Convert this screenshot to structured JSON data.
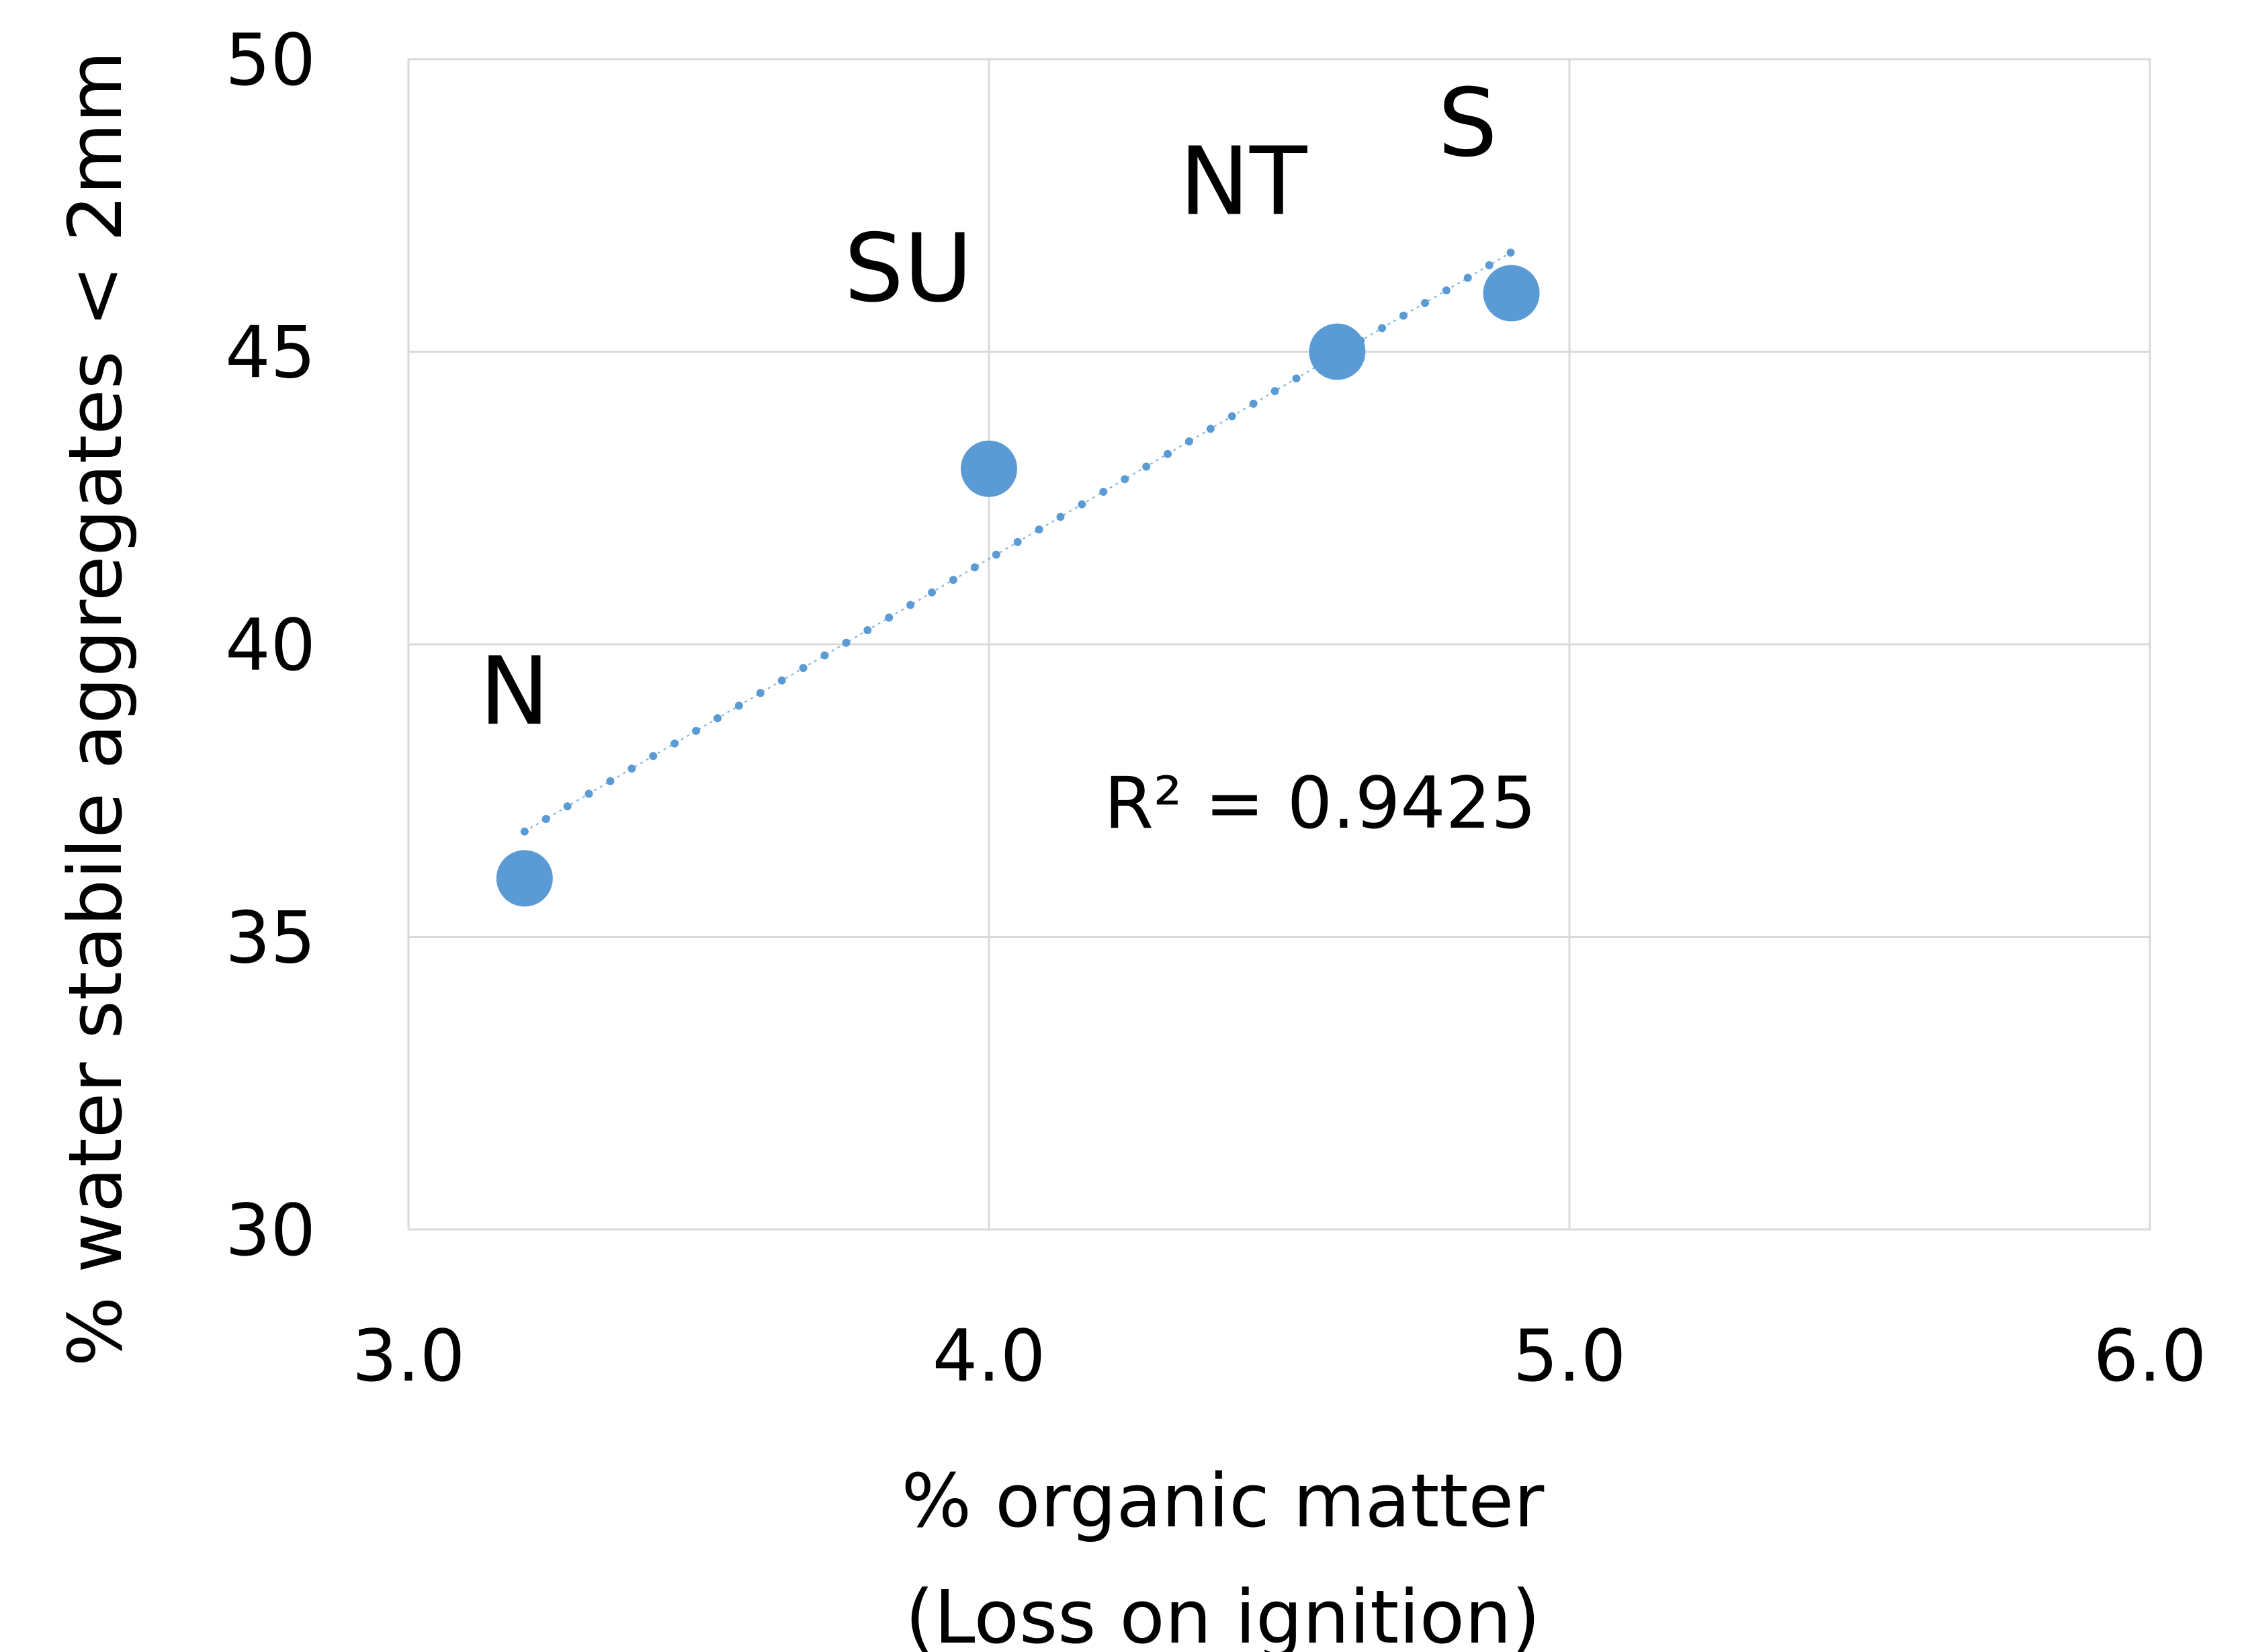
{
  "chart_data": {
    "type": "scatter",
    "xlabel": [
      "% organic matter",
      "(Loss on ignition)"
    ],
    "ylabel": "% water stabile aggregates < 2mm",
    "xlim": [
      3.0,
      6.0
    ],
    "ylim": [
      30,
      50
    ],
    "x_ticks": [
      3.0,
      4.0,
      5.0,
      6.0
    ],
    "x_tick_labels": [
      "3.0",
      "4.0",
      "5.0",
      "6.0"
    ],
    "y_ticks": [
      30,
      35,
      40,
      45,
      50
    ],
    "y_tick_labels": [
      "30",
      "35",
      "40",
      "45",
      "50"
    ],
    "grid": true,
    "marker_color": "#5b9bd5",
    "points": [
      {
        "label": "N",
        "x": 3.2,
        "y": 36
      },
      {
        "label": "SU",
        "x": 4.0,
        "y": 43
      },
      {
        "label": "NT",
        "x": 4.6,
        "y": 45
      },
      {
        "label": "S",
        "x": 4.9,
        "y": 46
      }
    ],
    "trendline": {
      "type": "linear",
      "style": "dotted",
      "x_range": [
        3.2,
        4.9
      ],
      "y_range": [
        36.8,
        46.7
      ],
      "r_squared_label": "R² = 0.9425"
    }
  }
}
